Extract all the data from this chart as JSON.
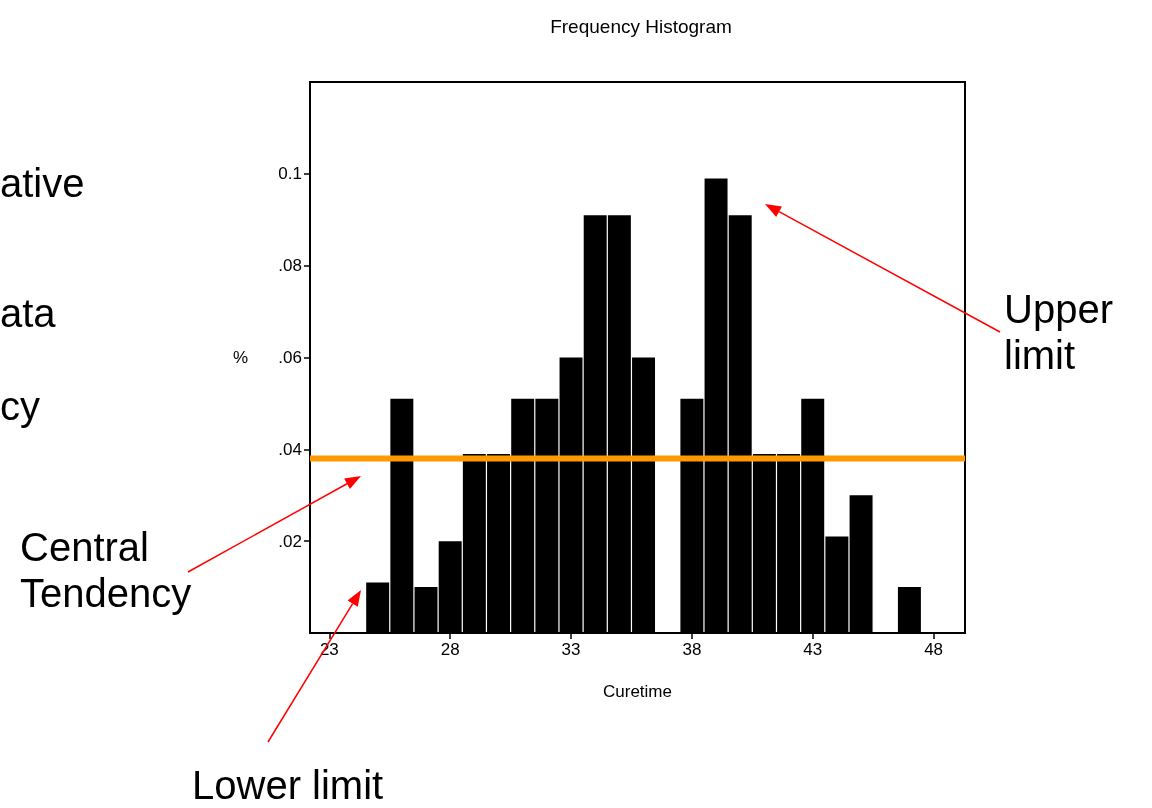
{
  "chart_data": {
    "type": "histogram",
    "title": "Frequency Histogram",
    "xlabel": "Curetime",
    "ylabel": "%",
    "bins": [
      24.5,
      25.5,
      26.5,
      27.5,
      28.5,
      29.5,
      30.5,
      31.5,
      32.5,
      33.5,
      34.5,
      35.5,
      36.5,
      37.5,
      38.5,
      39.5,
      40.5,
      41.5,
      42.5,
      43.5,
      44.5,
      45.5,
      46.5,
      47.5
    ],
    "values": [
      0.011,
      0.051,
      0.01,
      0.02,
      0.039,
      0.039,
      0.051,
      0.051,
      0.06,
      0.091,
      0.091,
      0.06,
      0,
      0.051,
      0.099,
      0.091,
      0.039,
      0.039,
      0.051,
      0.021,
      0.03,
      0,
      0.01
    ],
    "color": "#000000",
    "xlim": [
      22.2,
      49.3
    ],
    "xticks": [
      23,
      28,
      33,
      38,
      43,
      48
    ],
    "ylim": [
      0,
      0.12
    ],
    "yticks": [
      {
        "value": 0.02,
        "label": ".02"
      },
      {
        "value": 0.04,
        "label": ".04"
      },
      {
        "value": 0.06,
        "label": ".06"
      },
      {
        "value": 0.08,
        "label": ".08"
      },
      0.1
    ],
    "ref_lines": [
      {
        "axis": "y",
        "value": 0.038,
        "label": null,
        "color": "#ff9900"
      }
    ],
    "grid": false,
    "annotations": [
      "ative",
      "ata",
      "cy",
      "Central Tendency",
      "Lower limit",
      "Upper limit"
    ]
  }
}
